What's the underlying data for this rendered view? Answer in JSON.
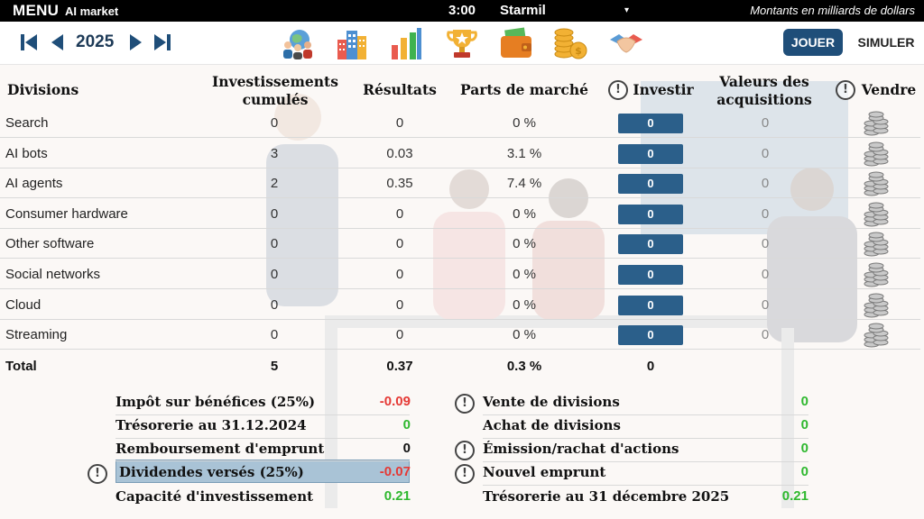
{
  "topbar": {
    "menu_label": "MENU",
    "app_name": "AI market",
    "time": "3:00",
    "company": "Starmil",
    "caret": "▾",
    "units_note": "Montants en milliards de dollars"
  },
  "nav": {
    "year": "2025",
    "icons": [
      "people-globe-icon",
      "buildings-icon",
      "bar-chart-icon",
      "trophy-icon",
      "wallet-icon",
      "coins-icon",
      "handshake-icon"
    ],
    "active_icon": "people-globe-icon",
    "jouer_label": "JOUER",
    "simuler_label": "SIMULER"
  },
  "table": {
    "headers": {
      "divisions": "Divisions",
      "investissements_l1": "Investissements",
      "investissements_l2": "cumulés",
      "resultats": "Résultats",
      "parts": "Parts de marché",
      "investir": "Investir",
      "valeurs_l1": "Valeurs des",
      "valeurs_l2": "acquisitions",
      "vendre": "Vendre",
      "warn_symbol": "!"
    },
    "rows": [
      {
        "name": "Search",
        "invest": "0",
        "result": "0",
        "share": "0 %",
        "investir": "0",
        "acq": "0"
      },
      {
        "name": "AI bots",
        "invest": "3",
        "result": "0.03",
        "share": "3.1 %",
        "investir": "0",
        "acq": "0"
      },
      {
        "name": "AI agents",
        "invest": "2",
        "result": "0.35",
        "share": "7.4 %",
        "investir": "0",
        "acq": "0"
      },
      {
        "name": "Consumer hardware",
        "invest": "0",
        "result": "0",
        "share": "0 %",
        "investir": "0",
        "acq": "0"
      },
      {
        "name": "Other software",
        "invest": "0",
        "result": "0",
        "share": "0 %",
        "investir": "0",
        "acq": "0"
      },
      {
        "name": "Social networks",
        "invest": "0",
        "result": "0",
        "share": "0 %",
        "investir": "0",
        "acq": "0"
      },
      {
        "name": "Cloud",
        "invest": "0",
        "result": "0",
        "share": "0 %",
        "investir": "0",
        "acq": "0"
      },
      {
        "name": "Streaming",
        "invest": "0",
        "result": "0",
        "share": "0 %",
        "investir": "0",
        "acq": "0"
      }
    ],
    "total": {
      "name": "Total",
      "invest": "5",
      "result": "0.37",
      "share": "0.3 %",
      "investir": "0"
    }
  },
  "summary": {
    "left": [
      {
        "label": "Impôt sur bénéfices (25%)",
        "value": "-0.09",
        "tone": "neg"
      },
      {
        "label": "Trésorerie au 31.12.2024",
        "value": "0",
        "tone": "pos"
      },
      {
        "label": "Remboursement d'emprunt",
        "value": "0",
        "tone": "neutral"
      },
      {
        "label": "Dividendes versés (25%)",
        "value": "-0.07",
        "tone": "neg"
      },
      {
        "label": "Capacité d'investissement",
        "value": "0.21",
        "tone": "pos"
      }
    ],
    "right": [
      {
        "label": "Vente de divisions",
        "value": "0",
        "tone": "pos"
      },
      {
        "label": "Achat de divisions",
        "value": "0",
        "tone": "pos"
      },
      {
        "label": "Émission/rachat d'actions",
        "value": "0",
        "tone": "pos"
      },
      {
        "label": "Nouvel emprunt",
        "value": "0",
        "tone": "pos"
      },
      {
        "label": "Trésorerie au 31 décembre 2025",
        "value": "0.21",
        "tone": "pos"
      }
    ]
  },
  "colors": {
    "accent": "#1f4e79",
    "invest_button": "#2b5f8a",
    "negative": "#e53935",
    "positive": "#2fb82f",
    "highlight": "#a9c3d6"
  }
}
